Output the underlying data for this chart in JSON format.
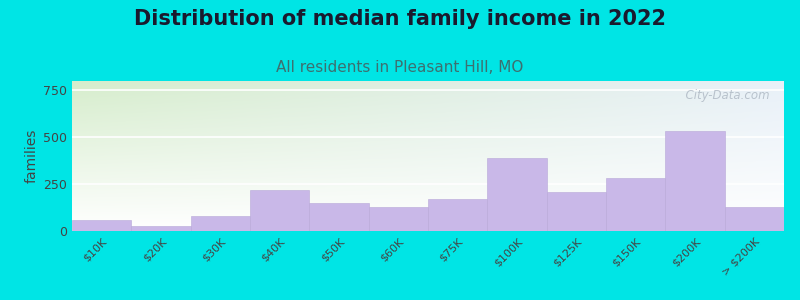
{
  "title": "Distribution of median family income in 2022",
  "subtitle": "All residents in Pleasant Hill, MO",
  "ylabel": "families",
  "categories": [
    "$10K",
    "$20K",
    "$30K",
    "$40K",
    "$50K",
    "$60K",
    "$75K",
    "$100K",
    "$125K",
    "$150K",
    "$200K",
    "> $200K"
  ],
  "values": [
    60,
    25,
    80,
    220,
    150,
    130,
    170,
    390,
    210,
    285,
    535,
    130
  ],
  "bar_color": "#c9b8e8",
  "bar_edge_color": "#b8a8d8",
  "background_outer": "#00e5e5",
  "background_plot_top_left": "#d6edcc",
  "background_plot_top_right": "#e8f0f8",
  "background_plot_bottom": "#ffffff",
  "yticks": [
    0,
    250,
    500,
    750
  ],
  "ylim": [
    0,
    800
  ],
  "title_fontsize": 15,
  "subtitle_fontsize": 11,
  "ylabel_fontsize": 10,
  "watermark": "  City-Data.com"
}
